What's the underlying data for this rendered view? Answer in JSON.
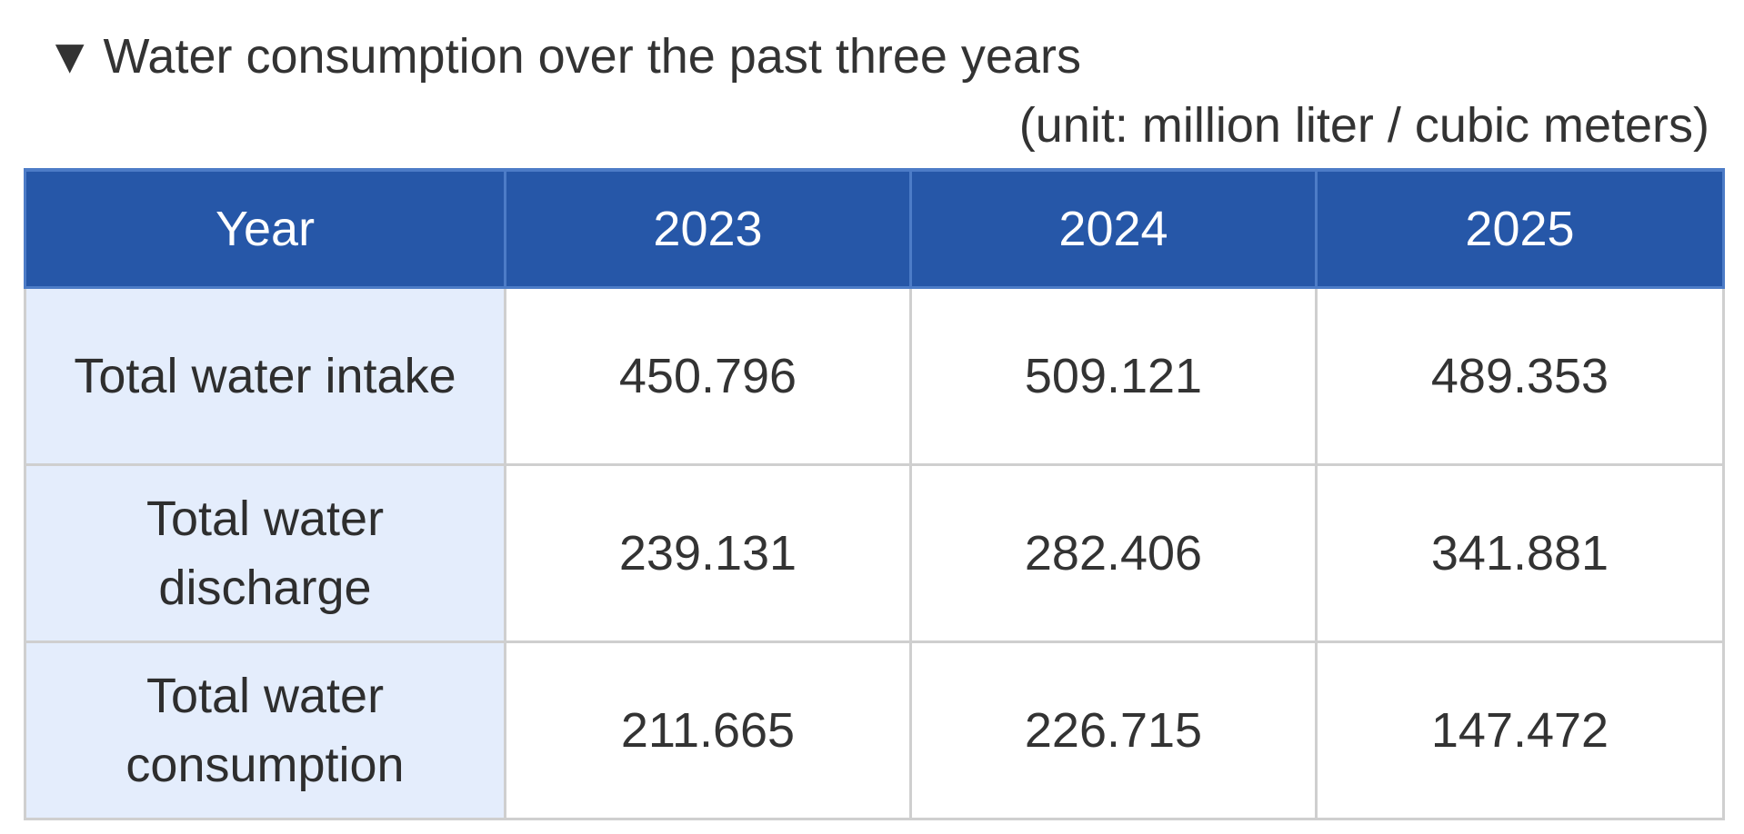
{
  "title": {
    "marker": "▼",
    "text": "Water consumption over the past three years"
  },
  "unit_note": "(unit: million liter / cubic meters)",
  "table": {
    "header": [
      "Year",
      "2023",
      "2024",
      "2025"
    ],
    "rows": [
      {
        "label": "Total water intake",
        "values": [
          "450.796",
          "509.121",
          "489.353"
        ]
      },
      {
        "label_lines": [
          "Total water",
          "discharge"
        ],
        "values": [
          "239.131",
          "282.406",
          "341.881"
        ]
      },
      {
        "label_lines": [
          "Total water",
          "consumption"
        ],
        "values": [
          "211.665",
          "226.715",
          "147.472"
        ]
      }
    ]
  },
  "colors": {
    "header_bg": "#2657a8",
    "row_label_bg": "#e4edfc",
    "grid": "#cfcfcf"
  }
}
